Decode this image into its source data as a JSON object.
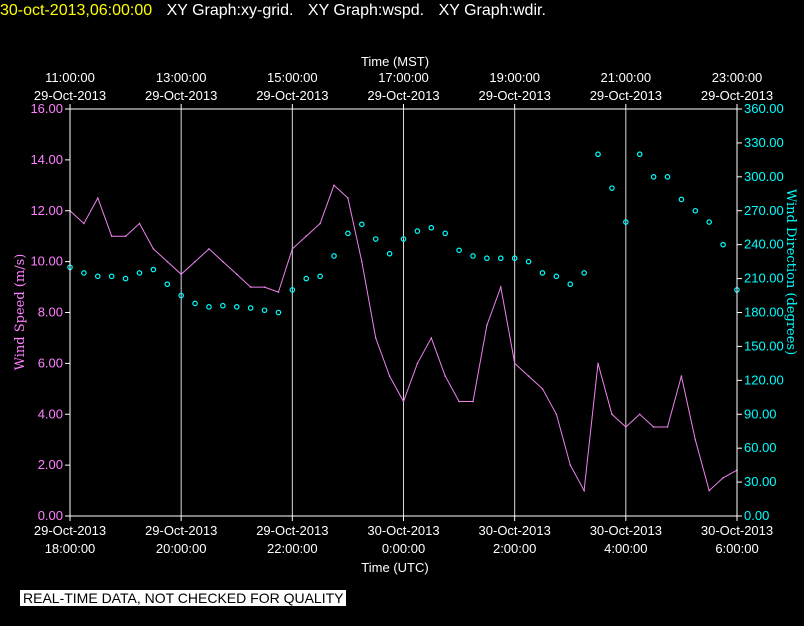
{
  "header": {
    "timestamp": "30-oct-2013,06:00:00",
    "graphs": [
      "XY Graph:xy-grid.",
      "XY Graph:wspd.",
      "XY Graph:wdir."
    ]
  },
  "quality_notice": "REAL-TIME DATA, NOT CHECKED FOR QUALITY",
  "colors": {
    "speed": "#ee82ee",
    "direction": "#00ffff",
    "timestamp": "#ffff00",
    "grid": "#ffffff"
  },
  "chart_data": {
    "type": "line",
    "top_axis": {
      "title": "Time (MST)",
      "ticks": [
        {
          "time": "11:00:00",
          "date": "29-Oct-2013"
        },
        {
          "time": "13:00:00",
          "date": "29-Oct-2013"
        },
        {
          "time": "15:00:00",
          "date": "29-Oct-2013"
        },
        {
          "time": "17:00:00",
          "date": "29-Oct-2013"
        },
        {
          "time": "19:00:00",
          "date": "29-Oct-2013"
        },
        {
          "time": "21:00:00",
          "date": "29-Oct-2013"
        },
        {
          "time": "23:00:00",
          "date": "29-Oct-2013"
        }
      ]
    },
    "bottom_axis": {
      "title": "Time (UTC)",
      "ticks": [
        {
          "date": "29-Oct-2013",
          "time": "18:00:00"
        },
        {
          "date": "29-Oct-2013",
          "time": "20:00:00"
        },
        {
          "date": "29-Oct-2013",
          "time": "22:00:00"
        },
        {
          "date": "30-Oct-2013",
          "time": "0:00:00"
        },
        {
          "date": "30-Oct-2013",
          "time": "2:00:00"
        },
        {
          "date": "30-Oct-2013",
          "time": "4:00:00"
        },
        {
          "date": "30-Oct-2013",
          "time": "6:00:00"
        }
      ]
    },
    "xlim_hours_utc": [
      18,
      30
    ],
    "left_axis": {
      "label": "Wind Speed (m/s)",
      "ylim": [
        0,
        16
      ],
      "ticks": [
        "0.00",
        "2.00",
        "4.00",
        "6.00",
        "8.00",
        "10.00",
        "12.00",
        "14.00",
        "16.00"
      ]
    },
    "right_axis": {
      "label": "Wind Direction (degrees)",
      "ylim": [
        0,
        360
      ],
      "ticks": [
        "0.00",
        "30.00",
        "60.00",
        "90.00",
        "120.00",
        "150.00",
        "180.00",
        "210.00",
        "240.00",
        "270.00",
        "300.00",
        "330.00",
        "360.00"
      ]
    },
    "grid": "vertical",
    "series": [
      {
        "axis": "left",
        "style": "line",
        "x": [
          18.0,
          18.25,
          18.5,
          18.75,
          19.0,
          19.25,
          19.5,
          19.75,
          20.0,
          20.25,
          20.5,
          20.75,
          21.0,
          21.25,
          21.5,
          21.75,
          22.0,
          22.25,
          22.5,
          22.75,
          23.0,
          23.25,
          23.5,
          23.75,
          24.0,
          24.25,
          24.5,
          24.75,
          25.0,
          25.25,
          25.5,
          25.75,
          26.0,
          26.25,
          26.5,
          26.75,
          27.0,
          27.25,
          27.5,
          27.75,
          28.0,
          28.25,
          28.5,
          28.75,
          29.0,
          29.25,
          29.5,
          29.75,
          30.0
        ],
        "y": [
          12.0,
          11.5,
          12.5,
          11.0,
          11.0,
          11.5,
          10.5,
          10.0,
          9.5,
          10.0,
          10.5,
          10.0,
          9.5,
          9.0,
          9.0,
          8.8,
          10.5,
          11.0,
          11.5,
          13.0,
          12.5,
          10.0,
          7.0,
          5.5,
          4.5,
          6.0,
          7.0,
          5.5,
          4.5,
          4.5,
          7.5,
          9.0,
          6.0,
          5.5,
          5.0,
          4.0,
          2.0,
          1.0,
          6.0,
          4.0,
          3.5,
          4.0,
          3.5,
          3.5,
          5.5,
          3.0,
          1.0,
          1.5,
          1.8
        ]
      },
      {
        "axis": "right",
        "style": "scatter",
        "x": [
          18.0,
          18.25,
          18.5,
          18.75,
          19.0,
          19.25,
          19.5,
          19.75,
          20.0,
          20.25,
          20.5,
          20.75,
          21.0,
          21.25,
          21.5,
          21.75,
          22.0,
          22.25,
          22.5,
          22.75,
          23.0,
          23.25,
          23.5,
          23.75,
          24.0,
          24.25,
          24.5,
          24.75,
          25.0,
          25.25,
          25.5,
          25.75,
          26.0,
          26.25,
          26.5,
          26.75,
          27.0,
          27.25,
          27.5,
          27.75,
          28.0,
          28.25,
          28.5,
          28.75,
          29.0,
          29.25,
          29.5,
          29.75,
          30.0
        ],
        "y": [
          220,
          215,
          212,
          212,
          210,
          215,
          218,
          205,
          195,
          188,
          185,
          186,
          185,
          184,
          182,
          180,
          200,
          210,
          212,
          230,
          250,
          258,
          245,
          232,
          245,
          252,
          255,
          250,
          235,
          230,
          228,
          228,
          228,
          225,
          215,
          212,
          205,
          215,
          320,
          290,
          260,
          320,
          300,
          300,
          280,
          270,
          260,
          240,
          200
        ]
      }
    ]
  }
}
